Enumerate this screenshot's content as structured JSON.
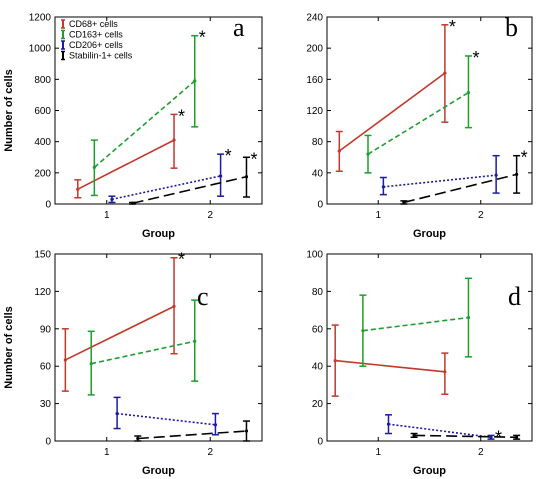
{
  "chart_data": [
    {
      "panel": "a",
      "type": "line",
      "xlabel": "Group",
      "ylabel": "Number of cells",
      "xlim": [
        0.5,
        2.5
      ],
      "ylim": [
        0,
        1200
      ],
      "yticks": [
        0,
        200,
        400,
        600,
        800,
        1000,
        1200
      ],
      "xticks": [
        1,
        2
      ],
      "legend": "top-left",
      "series": [
        {
          "name": "CD68+ cells",
          "color": "#c0392b",
          "dash": "solid",
          "x": [
            0.72,
            1.65
          ],
          "y": [
            95,
            410
          ],
          "err_low": [
            40,
            230
          ],
          "err_high": [
            155,
            575
          ],
          "sig": [
            false,
            true
          ]
        },
        {
          "name": "CD163+ cells",
          "color": "#1e9e2e",
          "dash": "dashed",
          "x": [
            0.88,
            1.85
          ],
          "y": [
            235,
            790
          ],
          "err_low": [
            55,
            495
          ],
          "err_high": [
            410,
            1080
          ],
          "sig": [
            false,
            true
          ]
        },
        {
          "name": "CD206+ cells",
          "color": "#1a1aa6",
          "dash": "dotted",
          "x": [
            1.05,
            2.1
          ],
          "y": [
            30,
            180
          ],
          "err_low": [
            10,
            50
          ],
          "err_high": [
            50,
            320
          ],
          "sig": [
            false,
            true
          ]
        },
        {
          "name": "Stabilin-1+ cells",
          "color": "#000000",
          "dash": "longdash",
          "x": [
            1.25,
            2.35
          ],
          "y": [
            5,
            175
          ],
          "err_low": [
            0,
            45
          ],
          "err_high": [
            10,
            300
          ],
          "sig": [
            false,
            true
          ]
        }
      ]
    },
    {
      "panel": "b",
      "type": "line",
      "xlabel": "Group",
      "ylabel": "",
      "xlim": [
        0.5,
        2.5
      ],
      "ylim": [
        0,
        240
      ],
      "yticks": [
        0,
        40,
        80,
        120,
        160,
        200,
        240
      ],
      "xticks": [
        1,
        2
      ],
      "series": [
        {
          "name": "CD68+ cells",
          "color": "#c0392b",
          "dash": "solid",
          "x": [
            0.62,
            1.65
          ],
          "y": [
            68,
            168
          ],
          "err_low": [
            42,
            105
          ],
          "err_high": [
            93,
            230
          ],
          "sig": [
            false,
            true
          ]
        },
        {
          "name": "CD163+ cells",
          "color": "#1e9e2e",
          "dash": "dashed",
          "x": [
            0.9,
            1.88
          ],
          "y": [
            64,
            143
          ],
          "err_low": [
            40,
            98
          ],
          "err_high": [
            88,
            190
          ],
          "sig": [
            false,
            true
          ]
        },
        {
          "name": "CD206+ cells",
          "color": "#1a1aa6",
          "dash": "dotted",
          "x": [
            1.05,
            2.15
          ],
          "y": [
            22,
            37
          ],
          "err_low": [
            12,
            14
          ],
          "err_high": [
            34,
            62
          ],
          "sig": [
            false,
            false
          ]
        },
        {
          "name": "Stabilin-1+ cells",
          "color": "#000000",
          "dash": "longdash",
          "x": [
            1.25,
            2.35
          ],
          "y": [
            2,
            38
          ],
          "err_low": [
            0,
            14
          ],
          "err_high": [
            4,
            62
          ],
          "sig": [
            false,
            true
          ]
        }
      ]
    },
    {
      "panel": "c",
      "type": "line",
      "xlabel": "Group",
      "ylabel": "Number of cells",
      "xlim": [
        0.5,
        2.5
      ],
      "ylim": [
        0,
        150
      ],
      "yticks": [
        0,
        30,
        60,
        90,
        120,
        150
      ],
      "xticks": [
        1,
        2
      ],
      "series": [
        {
          "name": "CD68+ cells",
          "color": "#c0392b",
          "dash": "solid",
          "x": [
            0.6,
            1.65
          ],
          "y": [
            65,
            108
          ],
          "err_low": [
            40,
            70
          ],
          "err_high": [
            90,
            147
          ],
          "sig": [
            false,
            true
          ]
        },
        {
          "name": "CD163+ cells",
          "color": "#1e9e2e",
          "dash": "dashed",
          "x": [
            0.85,
            1.85
          ],
          "y": [
            62,
            80
          ],
          "err_low": [
            37,
            48
          ],
          "err_high": [
            88,
            113
          ],
          "sig": [
            false,
            false
          ]
        },
        {
          "name": "CD206+ cells",
          "color": "#1a1aa6",
          "dash": "dotted",
          "x": [
            1.1,
            2.05
          ],
          "y": [
            22,
            13
          ],
          "err_low": [
            10,
            5
          ],
          "err_high": [
            35,
            22
          ],
          "sig": [
            false,
            false
          ]
        },
        {
          "name": "Stabilin-1+ cells",
          "color": "#000000",
          "dash": "longdash",
          "x": [
            1.3,
            2.35
          ],
          "y": [
            2,
            8
          ],
          "err_low": [
            0,
            0
          ],
          "err_high": [
            4,
            16
          ],
          "sig": [
            false,
            false
          ]
        }
      ]
    },
    {
      "panel": "d",
      "type": "line",
      "xlabel": "Group",
      "ylabel": "",
      "xlim": [
        0.5,
        2.5
      ],
      "ylim": [
        0,
        100
      ],
      "yticks": [
        0,
        20,
        40,
        60,
        80,
        100
      ],
      "xticks": [
        1,
        2
      ],
      "series": [
        {
          "name": "CD68+ cells",
          "color": "#c0392b",
          "dash": "solid",
          "x": [
            0.58,
            1.65
          ],
          "y": [
            43,
            37
          ],
          "err_low": [
            24,
            25
          ],
          "err_high": [
            62,
            47
          ],
          "sig": [
            false,
            false
          ]
        },
        {
          "name": "CD163+ cells",
          "color": "#1e9e2e",
          "dash": "dashed",
          "x": [
            0.85,
            1.88
          ],
          "y": [
            59,
            66
          ],
          "err_low": [
            40,
            45
          ],
          "err_high": [
            78,
            87
          ],
          "sig": [
            false,
            false
          ]
        },
        {
          "name": "CD206+ cells",
          "color": "#1a1aa6",
          "dash": "dotted",
          "x": [
            1.1,
            2.1
          ],
          "y": [
            9,
            2
          ],
          "err_low": [
            4,
            1
          ],
          "err_high": [
            14,
            3
          ],
          "sig": [
            false,
            true
          ]
        },
        {
          "name": "Stabilin-1+ cells",
          "color": "#000000",
          "dash": "longdash",
          "x": [
            1.35,
            2.35
          ],
          "y": [
            3,
            2
          ],
          "err_low": [
            2,
            1
          ],
          "err_high": [
            4,
            3
          ],
          "sig": [
            false,
            false
          ]
        }
      ]
    }
  ],
  "significance_mark": "*"
}
